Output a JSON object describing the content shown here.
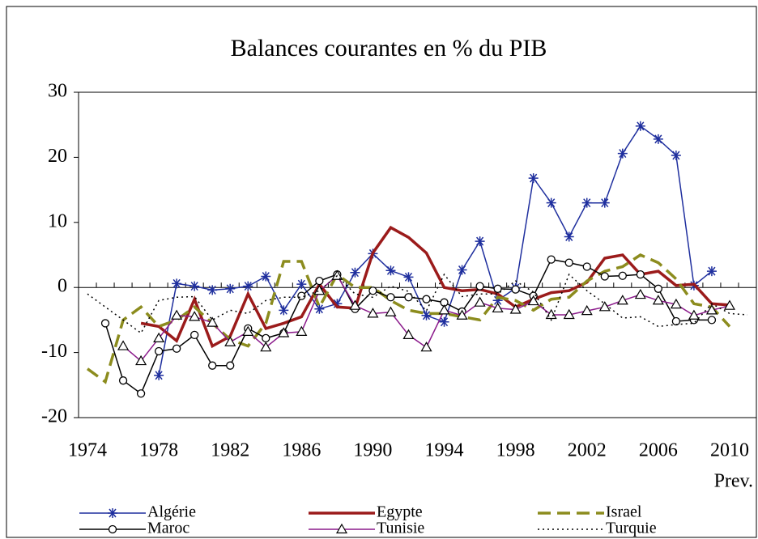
{
  "chart_data": {
    "type": "line",
    "title": "Balances courantes en % du PIB",
    "x_note": "Prev.",
    "categories": [
      "1974",
      null,
      null,
      null,
      "1978",
      null,
      null,
      null,
      "1982",
      null,
      null,
      null,
      "1986",
      null,
      null,
      null,
      "1990",
      null,
      null,
      null,
      "1994",
      null,
      null,
      null,
      "1998",
      null,
      null,
      null,
      "2002",
      null,
      null,
      null,
      "2006",
      null,
      null,
      null,
      "2010",
      null
    ],
    "ylim": [
      -20,
      30
    ],
    "yticks": [
      -20,
      -10,
      0,
      10,
      20,
      30
    ],
    "series": [
      {
        "name": "Algérie",
        "color": "#1f2f9e",
        "marker": "star",
        "dash": "solid",
        "width": 1.5,
        "values": [
          null,
          null,
          null,
          null,
          -13.5,
          0.6,
          0.2,
          -0.4,
          -0.2,
          0.2,
          1.7,
          -3.5,
          0.5,
          -3.3,
          -2.5,
          2.3,
          5.2,
          2.6,
          1.6,
          -4.3,
          -5.3,
          2.7,
          7.1,
          -2,
          -0.1,
          16.8,
          13,
          7.8,
          13,
          13,
          20.6,
          24.8,
          22.8,
          20.3,
          0.3,
          2.5,
          null,
          null
        ]
      },
      {
        "name": "Egypte",
        "color": "#9b1b1b",
        "marker": "none",
        "dash": "solid",
        "width": 3.5,
        "values": [
          null,
          null,
          null,
          -5.5,
          -6,
          -8.2,
          -1.8,
          -9,
          -7.5,
          -1,
          -6.3,
          -5.5,
          -4.5,
          0.5,
          -3,
          -3.2,
          5.3,
          9.2,
          7.7,
          5.3,
          0,
          -0.5,
          -0.3,
          -1,
          -3,
          -1.8,
          -0.8,
          -0.5,
          0.8,
          4.5,
          5,
          2,
          2.5,
          0.3,
          0.5,
          -2.5,
          -2.7,
          null
        ]
      },
      {
        "name": "Israel",
        "color": "#8c8c1e",
        "marker": "none",
        "dash": "long",
        "width": 3.5,
        "values": [
          -12.5,
          -14.5,
          -5,
          -3,
          -6,
          -5,
          -3,
          -5.5,
          -8,
          -9,
          -5.5,
          4,
          4,
          -3,
          2,
          0,
          0,
          -2,
          -3.5,
          -4,
          -4,
          -4.5,
          -5,
          -1.5,
          -2,
          -3.5,
          -1.8,
          -1.5,
          1,
          2.5,
          3.2,
          5,
          3.8,
          1.3,
          -2.5,
          -3,
          -6,
          null
        ]
      },
      {
        "name": "Maroc",
        "color": "#000000",
        "marker": "circle",
        "dash": "solid",
        "width": 1.5,
        "values": [
          null,
          -5.5,
          -14.3,
          -16.3,
          -9.8,
          -9.4,
          -7.3,
          -12,
          -12,
          -6.3,
          -7.8,
          -7,
          -1.3,
          1,
          2,
          -3.3,
          -0.5,
          -1.5,
          -1.5,
          -1.8,
          -2.3,
          -3.7,
          0.2,
          -0.2,
          -0.3,
          -1.3,
          4.3,
          3.8,
          3.2,
          1.7,
          1.8,
          2,
          -0.2,
          -5.2,
          -5,
          -5,
          null,
          null
        ]
      },
      {
        "name": "Tunisie",
        "color": "#8b1a8b",
        "marker": "triangle",
        "dash": "solid",
        "width": 1.5,
        "values": [
          null,
          null,
          -9,
          -11.3,
          -7.8,
          -4.3,
          -4.5,
          -5.4,
          -8.4,
          -6.8,
          -9.2,
          -7,
          -6.8,
          -0.5,
          1.8,
          -2.8,
          -4,
          -3.8,
          -7.3,
          -9.2,
          -3.5,
          -4.3,
          -2.3,
          -3.2,
          -3.4,
          -2.1,
          -4.2,
          -4.2,
          -3.6,
          -3,
          -2,
          -1.1,
          -2,
          -2.6,
          -4.3,
          -3.5,
          -2.8,
          null
        ]
      },
      {
        "name": "Turquie",
        "color": "#000000",
        "marker": "none",
        "dash": "dot",
        "width": 1.5,
        "values": [
          -1,
          -3,
          -5,
          -7,
          -2,
          -1.5,
          -1.4,
          -5,
          -3.5,
          -4,
          -2,
          -1.5,
          -1.5,
          -0.5,
          1.8,
          -1,
          -1.5,
          0.2,
          -0.6,
          -3.6,
          2,
          -1.4,
          -1,
          -1,
          1,
          -0.7,
          -5,
          2,
          -0.5,
          -2.5,
          -4.7,
          -4.5,
          -6,
          -5.7,
          -5.5,
          -2.5,
          -4,
          -4.2
        ]
      }
    ]
  }
}
